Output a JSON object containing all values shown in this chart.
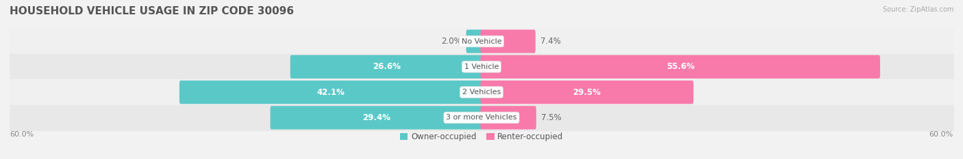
{
  "title": "HOUSEHOLD VEHICLE USAGE IN ZIP CODE 30096",
  "source": "Source: ZipAtlas.com",
  "categories": [
    "No Vehicle",
    "1 Vehicle",
    "2 Vehicles",
    "3 or more Vehicles"
  ],
  "owner_values": [
    2.0,
    26.6,
    42.1,
    29.4
  ],
  "renter_values": [
    7.4,
    55.6,
    29.5,
    7.5
  ],
  "owner_color": "#5bc8c8",
  "renter_color": "#f87aaa",
  "axis_max": 60.0,
  "axis_label_left": "60.0%",
  "axis_label_right": "60.0%",
  "legend_owner": "Owner-occupied",
  "legend_renter": "Renter-occupied",
  "bar_height": 0.62,
  "row_bg_even": "#f0f0f0",
  "row_bg_odd": "#e8e8e8",
  "title_fontsize": 11,
  "label_fontsize": 8.5,
  "category_fontsize": 8,
  "axis_fontsize": 8,
  "legend_fontsize": 8.5,
  "value_color_inside": "#ffffff",
  "value_color_outside": "#666666"
}
